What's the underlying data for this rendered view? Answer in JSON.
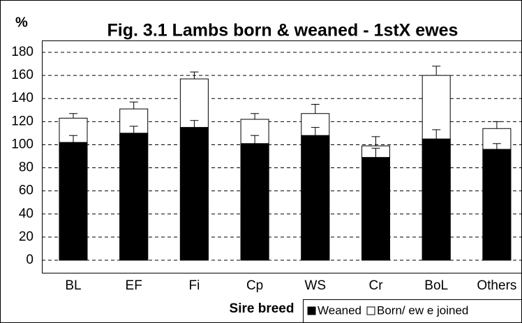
{
  "chart_data": {
    "type": "bar",
    "title": "Fig. 3.1 Lambs born & weaned - 1stX ewes",
    "y_label": "%",
    "x_label": "Sire breed",
    "categories": [
      "BL",
      "EF",
      "Fi",
      "Cp",
      "WS",
      "Cr",
      "BoL",
      "Others"
    ],
    "series": [
      {
        "name": "Weaned",
        "color": "#000000",
        "values": [
          102,
          110,
          115,
          101,
          108,
          89,
          105,
          96
        ],
        "errors": [
          6,
          6,
          6,
          7,
          7,
          8,
          8,
          5
        ]
      },
      {
        "name": "Born/ ew e joined",
        "color": "#ffffff",
        "values": [
          123,
          131,
          157,
          122,
          127,
          99,
          160,
          114
        ],
        "errors": [
          4,
          6,
          6,
          5,
          8,
          8,
          8,
          6
        ]
      }
    ],
    "ylim": [
      0,
      180
    ],
    "yticks": [
      0,
      20,
      40,
      60,
      80,
      100,
      120,
      140,
      160,
      180
    ],
    "grid": true
  }
}
